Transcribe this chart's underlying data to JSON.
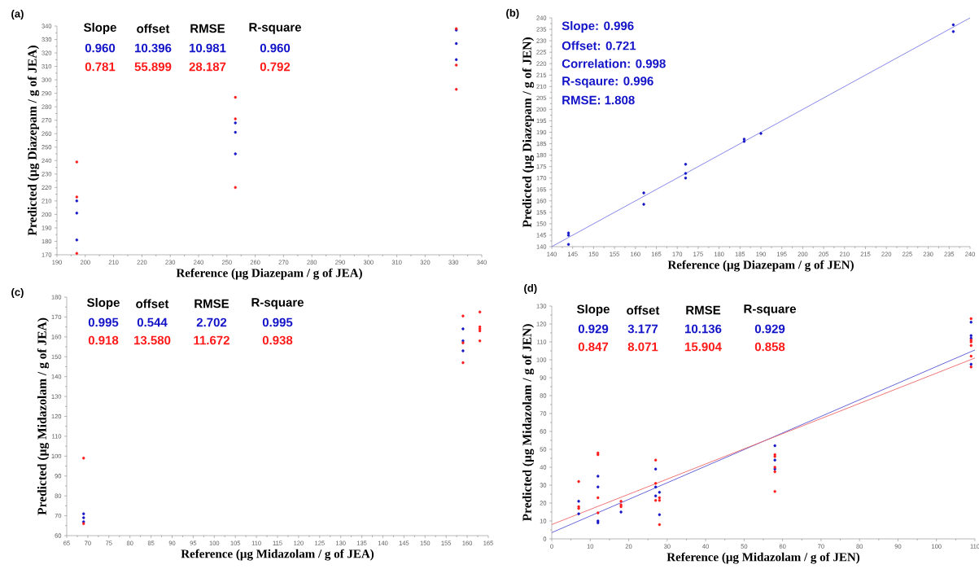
{
  "chart_data": [
    {
      "type": "scatter",
      "title": "(a)",
      "xlabel": "Reference (µg Diazepam / g of JEA)",
      "ylabel": "Predicted (µg Diazepam / g of JEA)",
      "marker": "circle",
      "xlim": [
        190,
        340
      ],
      "xticks": [
        190,
        200,
        210,
        220,
        230,
        240,
        250,
        260,
        270,
        280,
        290,
        300,
        310,
        320,
        330,
        340
      ],
      "ylim": [
        170,
        340
      ],
      "yticks": [
        170,
        180,
        190,
        200,
        210,
        220,
        230,
        240,
        250,
        260,
        270,
        280,
        290,
        300,
        310,
        320,
        330,
        340
      ],
      "annotations": [
        "Slope",
        "offset",
        "RMSE",
        "R-square",
        "0.960",
        "10.396",
        "10.981",
        "0.960",
        "0.781",
        "55.899",
        "28.187",
        "0.792"
      ],
      "series": [
        {
          "color": "#1414c8",
          "x": [
            197,
            197,
            197,
            253,
            253,
            253,
            331,
            331,
            331
          ],
          "values": [
            210,
            201,
            181,
            268,
            261,
            245,
            337,
            327,
            315
          ]
        },
        {
          "color": "#ff1a1a",
          "x": [
            197,
            197,
            197,
            253,
            253,
            253,
            331,
            331,
            331
          ],
          "values": [
            239,
            213,
            171,
            287,
            271,
            220,
            338,
            311,
            293
          ]
        }
      ]
    },
    {
      "type": "scatter",
      "title": "(b)",
      "xlabel": "Reference (µg Diazepam / g of JEN)",
      "ylabel": "Predicted (µg Diazepam / g of JEN)",
      "marker": "circle",
      "xlim": [
        140,
        240
      ],
      "xticks": [
        140,
        145,
        150,
        155,
        160,
        165,
        170,
        175,
        180,
        185,
        190,
        195,
        200,
        205,
        210,
        215,
        220,
        225,
        230,
        235,
        240
      ],
      "ylim": [
        140,
        240
      ],
      "yticks": [
        140,
        145,
        150,
        155,
        160,
        165,
        170,
        175,
        180,
        185,
        190,
        195,
        200,
        205,
        210,
        215,
        220,
        225,
        230,
        235,
        240
      ],
      "annotations": [
        "Slope: 0.996",
        "Offset: 0.721",
        "Correlation: 0.998",
        "R-sqaure: 0.996",
        "RMSE: 1.808"
      ],
      "series": [
        {
          "color": "#1414c8",
          "x": [
            144,
            144,
            144,
            162,
            162,
            172,
            172,
            172,
            186,
            186,
            190,
            236,
            236
          ],
          "values": [
            145,
            146,
            141,
            163.5,
            158.5,
            176,
            172,
            170,
            187,
            186,
            189.5,
            237,
            234
          ]
        },
        {
          "type": "line",
          "marker": "none",
          "color": "#7b7be6",
          "x": [
            140,
            240
          ],
          "values": [
            140,
            240
          ]
        }
      ]
    },
    {
      "type": "scatter",
      "title": "(c)",
      "xlabel": "Reference (µg Midazolam / g of JEA)",
      "ylabel": "Predicted (µg Midazolam / g of JEA)",
      "marker": "circle",
      "xlim": [
        65,
        165
      ],
      "xticks": [
        65,
        70,
        75,
        80,
        85,
        90,
        95,
        100,
        105,
        110,
        115,
        120,
        125,
        130,
        135,
        140,
        145,
        150,
        155,
        160,
        165
      ],
      "ylim": [
        60,
        180
      ],
      "yticks": [
        60,
        70,
        80,
        90,
        100,
        110,
        120,
        130,
        140,
        150,
        160,
        170,
        180
      ],
      "annotations": [
        "Slope",
        "offset",
        "RMSE",
        "R-square",
        "0.995",
        "0.544",
        "2.702",
        "0.995",
        "0.918",
        "13.580",
        "11.672",
        "0.938"
      ],
      "series": [
        {
          "color": "#1414c8",
          "x": [
            69,
            69,
            69,
            159,
            159,
            159
          ],
          "values": [
            71,
            69,
            67,
            164,
            158,
            153
          ]
        },
        {
          "color": "#ff1a1a",
          "x": [
            69,
            69,
            159,
            159,
            159,
            163,
            163,
            163,
            163,
            163
          ],
          "values": [
            99,
            66,
            170.5,
            157,
            147,
            172.5,
            165,
            164,
            163,
            158
          ]
        }
      ]
    },
    {
      "type": "scatter",
      "title": "(d)",
      "xlabel": "Reference (µg Midazolam / g of JEN)",
      "ylabel": "Predicted (µg Midazolam / g of JEN)",
      "marker": "circle",
      "xlim": [
        0,
        110
      ],
      "xticks": [
        0,
        10,
        20,
        30,
        40,
        50,
        60,
        70,
        80,
        90,
        100,
        110
      ],
      "ylim": [
        0,
        130
      ],
      "yticks": [
        0,
        10,
        20,
        30,
        40,
        50,
        60,
        70,
        80,
        90,
        100,
        110,
        120,
        130
      ],
      "annotations": [
        "Slope",
        "offset",
        "RMSE",
        "R-square",
        "0.929",
        "3.177",
        "10.136",
        "0.929",
        "0.847",
        "8.071",
        "15.904",
        "0.858"
      ],
      "series": [
        {
          "color": "#1414c8",
          "x": [
            7,
            7,
            12,
            12,
            12,
            12,
            18,
            27,
            27,
            27,
            28,
            28,
            58,
            58,
            58,
            109,
            109,
            109,
            109
          ],
          "values": [
            21,
            14,
            35,
            29,
            10,
            9,
            15,
            39,
            29,
            24,
            26,
            13.5,
            52,
            44,
            39,
            121,
            113.5,
            112,
            97.5
          ]
        },
        {
          "color": "#ff1a1a",
          "x": [
            7,
            7,
            7,
            12,
            12,
            12,
            12,
            18,
            18,
            18,
            27,
            27,
            27,
            28,
            28,
            28,
            58,
            58,
            58,
            58,
            58,
            109,
            109,
            109,
            109,
            109,
            109
          ],
          "values": [
            32,
            18,
            17,
            48,
            47,
            23,
            14.5,
            21,
            19,
            18,
            44,
            31,
            21.5,
            23,
            21.5,
            8,
            47,
            46,
            40,
            37.5,
            26.5,
            123,
            111,
            110,
            108,
            102,
            96
          ]
        },
        {
          "type": "line",
          "marker": "none",
          "color": "#5555d5",
          "x": [
            0,
            110
          ],
          "values": [
            3.5,
            105.5
          ]
        },
        {
          "type": "line",
          "marker": "none",
          "color": "#ee6666",
          "x": [
            0,
            110
          ],
          "values": [
            8,
            101
          ]
        }
      ]
    }
  ]
}
